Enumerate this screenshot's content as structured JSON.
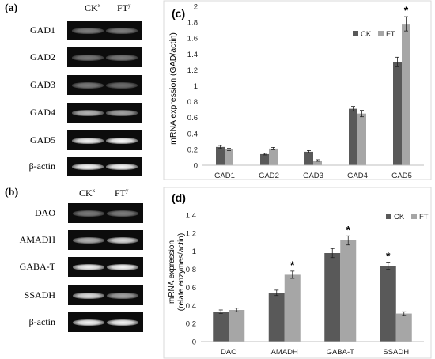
{
  "panel_a": {
    "label": "(a)",
    "col_ck": "CK",
    "col_ck_sup": "x",
    "col_ft": "FT",
    "col_ft_sup": "y",
    "rows": [
      {
        "name": "GAD1",
        "ck": 0.22,
        "ft": 0.22
      },
      {
        "name": "GAD2",
        "ck": 0.18,
        "ft": 0.2
      },
      {
        "name": "GAD3",
        "ck": 0.2,
        "ft": 0.12
      },
      {
        "name": "GAD4",
        "ck": 0.55,
        "ft": 0.45
      },
      {
        "name": "GAD5",
        "ck": 0.92,
        "ft": 0.98
      },
      {
        "name": "β-actin",
        "ck": 0.95,
        "ft": 0.95
      }
    ]
  },
  "panel_b": {
    "label": "(b)",
    "col_ck": "CK",
    "col_ck_sup": "x",
    "col_ft": "FT",
    "col_ft_sup": "y",
    "rows": [
      {
        "name": "DAO",
        "ck": 0.2,
        "ft": 0.22
      },
      {
        "name": "AMADH",
        "ck": 0.55,
        "ft": 0.8
      },
      {
        "name": "GABA-T",
        "ck": 0.92,
        "ft": 0.95
      },
      {
        "name": "SSADH",
        "ck": 0.8,
        "ft": 0.45
      },
      {
        "name": "β-actin",
        "ck": 0.95,
        "ft": 0.95
      }
    ]
  },
  "colors": {
    "ck": "#595959",
    "ft": "#a6a6a6"
  },
  "chart_data": [
    {
      "type": "bar",
      "panel_label": "(c)",
      "categories": [
        "GAD1",
        "GAD2",
        "GAD3",
        "GAD4",
        "GAD5"
      ],
      "series": [
        {
          "name": "CK",
          "values": [
            0.23,
            0.14,
            0.17,
            0.71,
            1.3
          ],
          "errors": [
            0.02,
            0.01,
            0.015,
            0.03,
            0.06
          ]
        },
        {
          "name": "FT",
          "values": [
            0.2,
            0.21,
            0.06,
            0.65,
            1.78
          ],
          "errors": [
            0.015,
            0.015,
            0.01,
            0.04,
            0.09
          ]
        }
      ],
      "significance": [
        {
          "category": "GAD5",
          "series": "FT",
          "mark": "*"
        }
      ],
      "ylabel": "mRNA expression (GAD/actin)",
      "xlabel": "",
      "ylim": [
        0,
        2
      ],
      "yticks": [
        "0",
        "0.2",
        "0.4",
        "0.6",
        "0.8",
        "1",
        "1.2",
        "1.4",
        "1.6",
        "1.8",
        "2"
      ],
      "legend": "top-right"
    },
    {
      "type": "bar",
      "panel_label": "(d)",
      "categories": [
        "DAO",
        "AMADH",
        "GABA-T",
        "SSADH"
      ],
      "series": [
        {
          "name": "CK",
          "values": [
            0.33,
            0.54,
            0.98,
            0.84
          ],
          "errors": [
            0.02,
            0.03,
            0.05,
            0.04
          ]
        },
        {
          "name": "FT",
          "values": [
            0.35,
            0.74,
            1.12,
            0.31
          ],
          "errors": [
            0.02,
            0.04,
            0.05,
            0.02
          ]
        }
      ],
      "significance": [
        {
          "category": "AMADH",
          "series": "FT",
          "mark": "*"
        },
        {
          "category": "GABA-T",
          "series": "FT",
          "mark": "*"
        },
        {
          "category": "SSADH",
          "series": "CK",
          "mark": "*"
        }
      ],
      "ylabel_line1": "mRNA expression",
      "ylabel_line2": "(relate enzymes/actin)",
      "xlabel": "",
      "ylim": [
        0,
        1.4
      ],
      "yticks": [
        "0",
        "0.2",
        "0.4",
        "0.6",
        "0.8",
        "1",
        "1.2",
        "1.4"
      ],
      "legend": "top-right"
    }
  ]
}
